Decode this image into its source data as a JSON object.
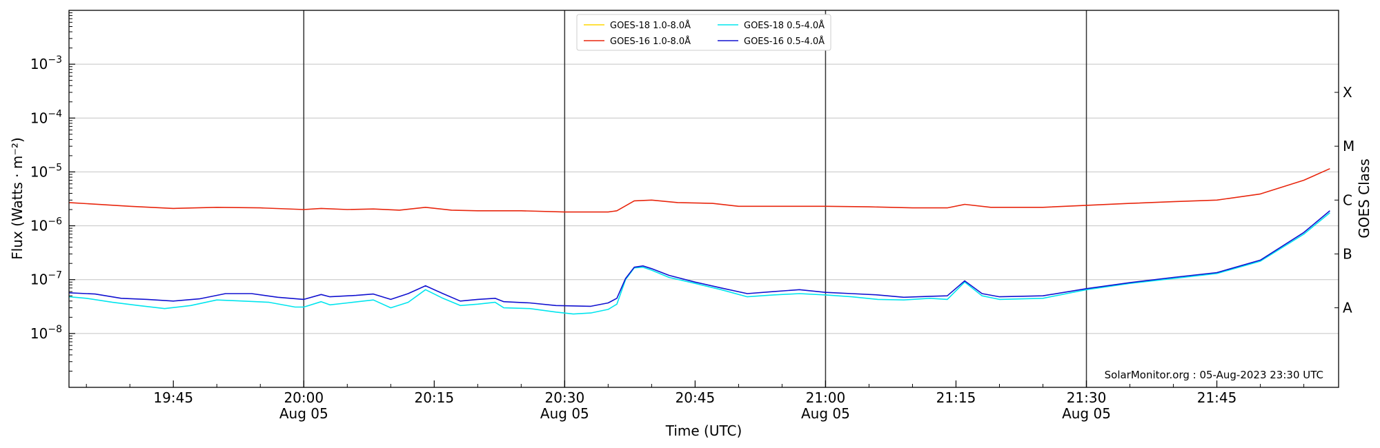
{
  "chart_data": {
    "type": "line",
    "xlabel": "Time (UTC)",
    "ylabel": "Flux (Watts · m⁻²)",
    "right_ylabel": "GOES Class",
    "y_scale": "log",
    "xlim": [
      "19:33",
      "21:59"
    ],
    "ylim": [
      1e-09,
      0.01
    ],
    "grid": "horizontal",
    "legend_position": "top-center",
    "footer": "SolarMonitor.org : 05-Aug-2023 23:30 UTC",
    "x_ticks": [
      {
        "time": "19:45",
        "label": "19:45",
        "sublabel": ""
      },
      {
        "time": "20:00",
        "label": "20:00",
        "sublabel": "Aug 05"
      },
      {
        "time": "20:15",
        "label": "20:15",
        "sublabel": ""
      },
      {
        "time": "20:30",
        "label": "20:30",
        "sublabel": "Aug 05"
      },
      {
        "time": "20:45",
        "label": "20:45",
        "sublabel": ""
      },
      {
        "time": "21:00",
        "label": "21:00",
        "sublabel": "Aug 05"
      },
      {
        "time": "21:15",
        "label": "21:15",
        "sublabel": ""
      },
      {
        "time": "21:30",
        "label": "21:30",
        "sublabel": "Aug 05"
      },
      {
        "time": "21:45",
        "label": "21:45",
        "sublabel": ""
      }
    ],
    "y_ticks": [
      {
        "value": 1e-08,
        "base": "10",
        "exp": "−8"
      },
      {
        "value": 1e-07,
        "base": "10",
        "exp": "−7"
      },
      {
        "value": 1e-06,
        "base": "10",
        "exp": "−6"
      },
      {
        "value": 1e-05,
        "base": "10",
        "exp": "−5"
      },
      {
        "value": 0.0001,
        "base": "10",
        "exp": "−4"
      },
      {
        "value": 0.001,
        "base": "10",
        "exp": "−3"
      }
    ],
    "vertical_lines": [
      "20:00",
      "20:30",
      "21:00",
      "21:30"
    ],
    "goes_classes": [
      {
        "label": "A",
        "value": 3e-08
      },
      {
        "label": "B",
        "value": 3e-07
      },
      {
        "label": "C",
        "value": 3e-06
      },
      {
        "label": "M",
        "value": 3e-05
      },
      {
        "label": "X",
        "value": 0.0003
      }
    ],
    "series": [
      {
        "name": "GOES-18 1.0-8.0Å",
        "color": "#ffd700",
        "visible": false,
        "points": []
      },
      {
        "name": "GOES-16 1.0-8.0Å",
        "color": "#e8250c",
        "visible": true,
        "points": [
          [
            "19:33",
            2.7e-06
          ],
          [
            "19:40",
            2.3e-06
          ],
          [
            "19:45",
            2.1e-06
          ],
          [
            "19:50",
            2.2e-06
          ],
          [
            "19:55",
            2.15e-06
          ],
          [
            "20:00",
            2e-06
          ],
          [
            "20:02",
            2.1e-06
          ],
          [
            "20:05",
            2e-06
          ],
          [
            "20:08",
            2.05e-06
          ],
          [
            "20:11",
            1.95e-06
          ],
          [
            "20:14",
            2.2e-06
          ],
          [
            "20:17",
            1.95e-06
          ],
          [
            "20:20",
            1.9e-06
          ],
          [
            "20:25",
            1.9e-06
          ],
          [
            "20:30",
            1.8e-06
          ],
          [
            "20:35",
            1.8e-06
          ],
          [
            "20:36",
            1.9e-06
          ],
          [
            "20:38",
            2.9e-06
          ],
          [
            "20:40",
            3e-06
          ],
          [
            "20:43",
            2.7e-06
          ],
          [
            "20:47",
            2.6e-06
          ],
          [
            "20:50",
            2.3e-06
          ],
          [
            "20:55",
            2.3e-06
          ],
          [
            "21:00",
            2.3e-06
          ],
          [
            "21:05",
            2.25e-06
          ],
          [
            "21:10",
            2.15e-06
          ],
          [
            "21:14",
            2.15e-06
          ],
          [
            "21:16",
            2.5e-06
          ],
          [
            "21:19",
            2.2e-06
          ],
          [
            "21:25",
            2.2e-06
          ],
          [
            "21:30",
            2.4e-06
          ],
          [
            "21:35",
            2.6e-06
          ],
          [
            "21:40",
            2.8e-06
          ],
          [
            "21:45",
            3e-06
          ],
          [
            "21:50",
            3.9e-06
          ],
          [
            "21:55",
            7e-06
          ],
          [
            "21:58",
            1.15e-05
          ]
        ]
      },
      {
        "name": "GOES-18 0.5-4.0Å",
        "color": "#00e5ee",
        "visible": true,
        "points": [
          [
            "19:33",
            4.8e-08
          ],
          [
            "19:35",
            4.5e-08
          ],
          [
            "19:38",
            3.8e-08
          ],
          [
            "19:41",
            3.3e-08
          ],
          [
            "19:44",
            2.9e-08
          ],
          [
            "19:47",
            3.3e-08
          ],
          [
            "19:50",
            4.2e-08
          ],
          [
            "19:53",
            4e-08
          ],
          [
            "19:56",
            3.8e-08
          ],
          [
            "19:59",
            3.1e-08
          ],
          [
            "20:00",
            3.1e-08
          ],
          [
            "20:02",
            3.9e-08
          ],
          [
            "20:03",
            3.4e-08
          ],
          [
            "20:05",
            3.7e-08
          ],
          [
            "20:08",
            4.2e-08
          ],
          [
            "20:10",
            3e-08
          ],
          [
            "20:12",
            3.8e-08
          ],
          [
            "20:14",
            6.5e-08
          ],
          [
            "20:16",
            4.5e-08
          ],
          [
            "20:18",
            3.3e-08
          ],
          [
            "20:20",
            3.5e-08
          ],
          [
            "20:22",
            3.8e-08
          ],
          [
            "20:23",
            3e-08
          ],
          [
            "20:26",
            2.9e-08
          ],
          [
            "20:29",
            2.5e-08
          ],
          [
            "20:31",
            2.3e-08
          ],
          [
            "20:33",
            2.4e-08
          ],
          [
            "20:35",
            2.8e-08
          ],
          [
            "20:36",
            3.5e-08
          ],
          [
            "20:37",
            1e-07
          ],
          [
            "20:38",
            1.65e-07
          ],
          [
            "20:39",
            1.7e-07
          ],
          [
            "20:40",
            1.5e-07
          ],
          [
            "20:42",
            1.1e-07
          ],
          [
            "20:45",
            8.5e-08
          ],
          [
            "20:48",
            6.5e-08
          ],
          [
            "20:51",
            4.8e-08
          ],
          [
            "20:54",
            5.2e-08
          ],
          [
            "20:57",
            5.5e-08
          ],
          [
            "21:00",
            5.2e-08
          ],
          [
            "21:03",
            4.8e-08
          ],
          [
            "21:06",
            4.3e-08
          ],
          [
            "21:09",
            4.2e-08
          ],
          [
            "21:12",
            4.5e-08
          ],
          [
            "21:14",
            4.3e-08
          ],
          [
            "21:16",
            9e-08
          ],
          [
            "21:18",
            5e-08
          ],
          [
            "21:20",
            4.3e-08
          ],
          [
            "21:25",
            4.5e-08
          ],
          [
            "21:30",
            6.5e-08
          ],
          [
            "21:35",
            8.5e-08
          ],
          [
            "21:40",
            1.05e-07
          ],
          [
            "21:45",
            1.3e-07
          ],
          [
            "21:50",
            2.2e-07
          ],
          [
            "21:55",
            7e-07
          ],
          [
            "21:58",
            1.75e-06
          ]
        ]
      },
      {
        "name": "GOES-16 0.5-4.0Å",
        "color": "#1010d0",
        "visible": true,
        "points": [
          [
            "19:33",
            5.7e-08
          ],
          [
            "19:36",
            5.4e-08
          ],
          [
            "19:39",
            4.5e-08
          ],
          [
            "19:42",
            4.3e-08
          ],
          [
            "19:45",
            4e-08
          ],
          [
            "19:48",
            4.4e-08
          ],
          [
            "19:51",
            5.5e-08
          ],
          [
            "19:54",
            5.5e-08
          ],
          [
            "19:57",
            4.7e-08
          ],
          [
            "20:00",
            4.3e-08
          ],
          [
            "20:02",
            5.3e-08
          ],
          [
            "20:03",
            4.8e-08
          ],
          [
            "20:06",
            5.1e-08
          ],
          [
            "20:08",
            5.4e-08
          ],
          [
            "20:10",
            4.3e-08
          ],
          [
            "20:12",
            5.5e-08
          ],
          [
            "20:14",
            7.7e-08
          ],
          [
            "20:16",
            5.5e-08
          ],
          [
            "20:18",
            4e-08
          ],
          [
            "20:20",
            4.3e-08
          ],
          [
            "20:22",
            4.5e-08
          ],
          [
            "20:23",
            3.9e-08
          ],
          [
            "20:26",
            3.7e-08
          ],
          [
            "20:29",
            3.3e-08
          ],
          [
            "20:33",
            3.2e-08
          ],
          [
            "20:35",
            3.7e-08
          ],
          [
            "20:36",
            4.5e-08
          ],
          [
            "20:37",
            1.05e-07
          ],
          [
            "20:38",
            1.7e-07
          ],
          [
            "20:39",
            1.8e-07
          ],
          [
            "20:40",
            1.6e-07
          ],
          [
            "20:42",
            1.2e-07
          ],
          [
            "20:45",
            9e-08
          ],
          [
            "20:48",
            7e-08
          ],
          [
            "20:51",
            5.5e-08
          ],
          [
            "20:54",
            6e-08
          ],
          [
            "20:57",
            6.5e-08
          ],
          [
            "21:00",
            5.8e-08
          ],
          [
            "21:03",
            5.5e-08
          ],
          [
            "21:06",
            5.2e-08
          ],
          [
            "21:09",
            4.7e-08
          ],
          [
            "21:12",
            4.9e-08
          ],
          [
            "21:14",
            5e-08
          ],
          [
            "21:16",
            9.5e-08
          ],
          [
            "21:18",
            5.5e-08
          ],
          [
            "21:20",
            4.8e-08
          ],
          [
            "21:25",
            5e-08
          ],
          [
            "21:30",
            6.8e-08
          ],
          [
            "21:35",
            8.8e-08
          ],
          [
            "21:40",
            1.1e-07
          ],
          [
            "21:45",
            1.35e-07
          ],
          [
            "21:50",
            2.3e-07
          ],
          [
            "21:55",
            7.5e-07
          ],
          [
            "21:58",
            1.9e-06
          ]
        ]
      }
    ]
  }
}
